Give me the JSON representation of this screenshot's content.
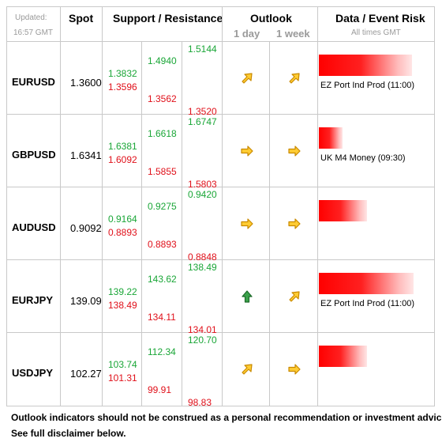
{
  "header": {
    "updated_label": "Updated:",
    "updated_time": "16:57 GMT",
    "spot": "Spot",
    "sr": "Support / Resistance",
    "outlook": "Outlook",
    "day": "1 day",
    "week": "1 week",
    "data_risk": "Data / Event Risk",
    "times": "All times GMT"
  },
  "rows": [
    {
      "pair": "EURUSD",
      "spot": "1.3600",
      "s1a": "1.3832",
      "s1b": "1.3596",
      "s2a": "1.4940",
      "s2b": "1.3562",
      "s3a": "1.5144",
      "s3b": "1.3520",
      "day_icon": "arrow-up-right-icon",
      "week_icon": "arrow-up-right-icon",
      "event": "EZ Port Ind Prod (11:00)",
      "risk": 0.95
    },
    {
      "pair": "GBPUSD",
      "spot": "1.6341",
      "s1a": "1.6381",
      "s1b": "1.6092",
      "s2a": "1.6618",
      "s2b": "1.5855",
      "s3a": "1.6747",
      "s3b": "1.5803",
      "day_icon": "arrow-right-icon",
      "week_icon": "arrow-right-icon",
      "event": "UK M4 Money (09:30)",
      "risk": 0.24
    },
    {
      "pair": "AUDUSD",
      "spot": "0.9092",
      "s1a": "0.9164",
      "s1b": "0.8893",
      "s2a": "0.9275",
      "s2b": "0.8893",
      "s3a": "0.9420",
      "s3b": "0.8848",
      "day_icon": "arrow-right-icon",
      "week_icon": "arrow-right-icon",
      "event": "",
      "risk": 0.49
    },
    {
      "pair": "EURJPY",
      "spot": "139.09",
      "s1a": "139.22",
      "s1b": "138.49",
      "s2a": "143.62",
      "s2b": "134.11",
      "s3a": "138.49",
      "s3b": "134.01",
      "day_icon": "arrow-up-icon",
      "week_icon": "arrow-up-right-icon",
      "event": "EZ Port Ind Prod (11:00)",
      "risk": 0.97
    },
    {
      "pair": "USDJPY",
      "spot": "102.27",
      "s1a": "103.74",
      "s1b": "101.31",
      "s2a": "112.34",
      "s2b": "99.91",
      "s3a": "120.70",
      "s3b": "98.83",
      "day_icon": "arrow-up-right-icon",
      "week_icon": "arrow-right-icon",
      "event": "",
      "risk": 0.49
    }
  ],
  "footer": {
    "line1": "Outlook indicators should not be construed as a personal recommendation or investment advice.",
    "line2": "See full disclaimer below."
  }
}
